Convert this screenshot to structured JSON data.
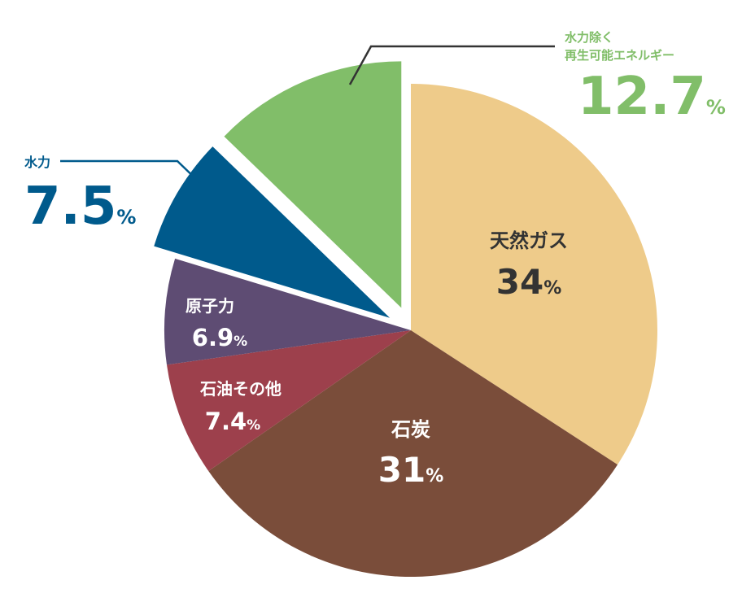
{
  "chart_data": {
    "type": "pie",
    "title": "",
    "unit": "%",
    "slices": [
      {
        "label": "天然ガス",
        "value": 34,
        "value_text": "34",
        "color": "#eecb8a",
        "exploded": false
      },
      {
        "label": "石炭",
        "value": 31,
        "value_text": "31",
        "color": "#7a4d3a",
        "exploded": false
      },
      {
        "label": "石油その他",
        "value": 7.4,
        "value_text": "7.4",
        "color": "#9d404c",
        "exploded": false
      },
      {
        "label": "原子力",
        "value": 6.9,
        "value_text": "6.9",
        "color": "#5e4c73",
        "exploded": false
      },
      {
        "label": "水力",
        "value": 7.5,
        "value_text": "7.5",
        "color": "#005a8c",
        "exploded": true
      },
      {
        "label_line1": "水力除く",
        "label_line2": "再生可能エネルギー",
        "value": 12.7,
        "value_text": "12.7",
        "color": "#81be69",
        "exploded": true
      }
    ]
  }
}
